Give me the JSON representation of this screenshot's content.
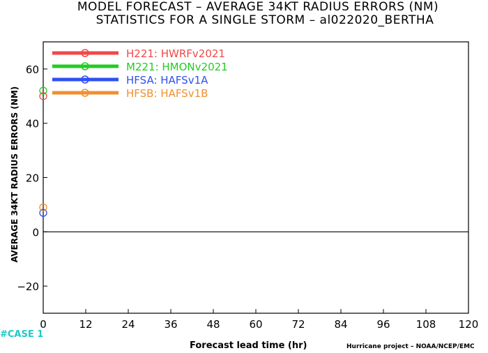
{
  "titles": {
    "line1": "MODEL FORECAST – AVERAGE 34KT RADIUS ERRORS (NM)",
    "line2": "STATISTICS FOR A SINGLE STORM – al022020_BERTHA"
  },
  "footer": {
    "case_text": "#CASE  1",
    "case_color": "#22c8c8",
    "credit": "Hurricane project – NOAA/NCEP/EMC"
  },
  "chart_data": {
    "type": "line",
    "title": "MODEL FORECAST – AVERAGE 34KT RADIUS ERRORS (NM)",
    "subtitle": "STATISTICS FOR A SINGLE STORM – al022020_BERTHA",
    "xlabel": "Forecast lead time (hr)",
    "ylabel": "AVERAGE 34KT RADIUS ERRORS (NM)",
    "xlim": [
      0,
      120
    ],
    "ylim": [
      -30,
      70
    ],
    "xticks": [
      0,
      12,
      24,
      36,
      48,
      60,
      72,
      84,
      96,
      108,
      120
    ],
    "yticks": [
      -20,
      0,
      20,
      40,
      60
    ],
    "zero_line": true,
    "grid": false,
    "legend_position": "top-left",
    "series": [
      {
        "name": "H221: HWRFv2021",
        "color": "#f04848",
        "x": [
          0
        ],
        "y": [
          50
        ]
      },
      {
        "name": "M221: HMONv2021",
        "color": "#22cc22",
        "x": [
          0
        ],
        "y": [
          52
        ]
      },
      {
        "name": "HFSA: HAFSv1A",
        "color": "#3050f0",
        "x": [
          0
        ],
        "y": [
          7
        ]
      },
      {
        "name": "HFSB: HAFSv1B",
        "color": "#f09030",
        "x": [
          0
        ],
        "y": [
          9
        ]
      }
    ]
  }
}
